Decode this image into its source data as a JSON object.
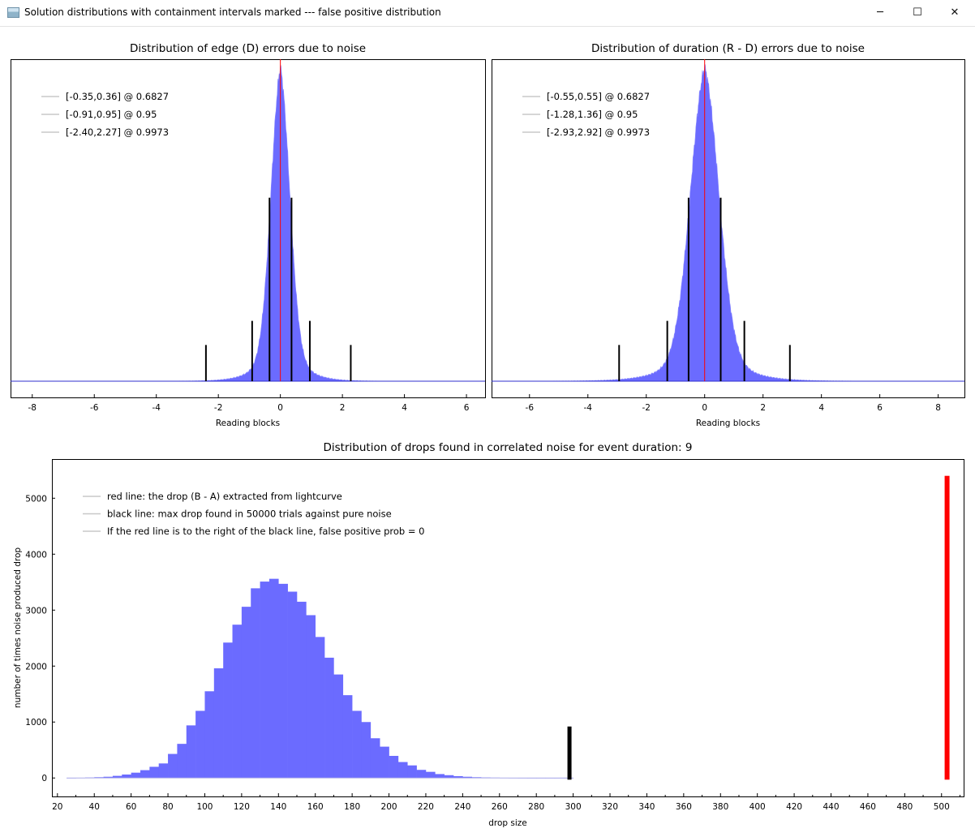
{
  "window": {
    "title": "Solution distributions with containment intervals marked --- false positive distribution",
    "min_glyph": "─",
    "max_glyph": "☐",
    "close_glyph": "✕",
    "app_icon": "window-icon"
  },
  "colors": {
    "hist_fill": "#6b6bff",
    "center_line": "#ff0000",
    "interval_line": "#000000",
    "baseline": "#2f2fcf"
  },
  "chart_data": [
    {
      "type": "bar",
      "title": "Distribution of edge (D) errors due to noise",
      "xlabel": "Reading blocks",
      "ylabel": "",
      "xlim": [
        -8.7,
        6.6
      ],
      "xticks": [
        -8,
        -6,
        -4,
        -2,
        0,
        2,
        4,
        6
      ],
      "distribution": {
        "center": 0.0,
        "sigma": 0.31,
        "tail": 0.5,
        "peak_frac": 0.93
      },
      "center_line": 0.0,
      "interval_bars": [
        {
          "x": -0.35,
          "height_frac": 0.76
        },
        {
          "x": 0.36,
          "height_frac": 0.76
        },
        {
          "x": -0.91,
          "height_frac": 0.25
        },
        {
          "x": 0.95,
          "height_frac": 0.25
        },
        {
          "x": -2.4,
          "height_frac": 0.15
        },
        {
          "x": 2.27,
          "height_frac": 0.15
        }
      ],
      "legend": [
        "[-0.35,0.36] @ 0.6827",
        "[-0.91,0.95] @ 0.95",
        "[-2.40,2.27] @ 0.9973"
      ],
      "legend_position": "top-left",
      "grid": false
    },
    {
      "type": "bar",
      "title": "Distribution of duration (R - D) errors due to noise",
      "xlabel": "Reading blocks",
      "ylabel": "",
      "xlim": [
        -7.3,
        8.9
      ],
      "xticks": [
        -6,
        -4,
        -2,
        0,
        2,
        4,
        6,
        8
      ],
      "distribution": {
        "center": 0.0,
        "sigma": 0.5,
        "tail": 0.8,
        "peak_frac": 0.93
      },
      "center_line": 0.0,
      "interval_bars": [
        {
          "x": -0.55,
          "height_frac": 0.76
        },
        {
          "x": 0.55,
          "height_frac": 0.76
        },
        {
          "x": -1.28,
          "height_frac": 0.25
        },
        {
          "x": 1.36,
          "height_frac": 0.25
        },
        {
          "x": -2.93,
          "height_frac": 0.15
        },
        {
          "x": 2.92,
          "height_frac": 0.15
        }
      ],
      "legend": [
        "[-0.55,0.55] @ 0.6827",
        "[-1.28,1.36] @ 0.95",
        "[-2.93,2.92] @ 0.9973"
      ],
      "legend_position": "top-left",
      "grid": false
    },
    {
      "type": "bar",
      "title": "Distribution of drops found in correlated noise for event duration: 9",
      "xlabel": "drop size",
      "ylabel": "number of times noise produced drop",
      "xlim": [
        17,
        512
      ],
      "ylim": [
        -330,
        5700
      ],
      "xticks": [
        20,
        40,
        60,
        80,
        100,
        120,
        140,
        160,
        180,
        200,
        220,
        240,
        260,
        280,
        300,
        320,
        340,
        360,
        380,
        400,
        420,
        440,
        460,
        480,
        500
      ],
      "yticks": [
        0,
        1000,
        2000,
        3000,
        4000,
        5000
      ],
      "bin_width": 5,
      "bins_start": [
        25,
        30,
        35,
        40,
        45,
        50,
        55,
        60,
        65,
        70,
        75,
        80,
        85,
        90,
        95,
        100,
        105,
        110,
        115,
        120,
        125,
        130,
        135,
        140,
        145,
        150,
        155,
        160,
        165,
        170,
        175,
        180,
        185,
        190,
        195,
        200,
        205,
        210,
        215,
        220,
        225,
        230,
        235,
        240,
        245,
        250,
        255,
        260,
        265,
        270,
        275,
        280,
        285,
        290,
        295
      ],
      "counts": [
        2,
        4,
        8,
        14,
        22,
        38,
        62,
        95,
        140,
        200,
        260,
        430,
        610,
        940,
        1200,
        1550,
        1960,
        2420,
        2740,
        3060,
        3390,
        3510,
        3560,
        3470,
        3330,
        3150,
        2910,
        2520,
        2150,
        1850,
        1480,
        1200,
        1000,
        710,
        560,
        395,
        285,
        225,
        145,
        110,
        70,
        50,
        33,
        22,
        14,
        9,
        6,
        4,
        3,
        2,
        1,
        1,
        1,
        1,
        1
      ],
      "black_line": {
        "x": 298,
        "y0": -30,
        "y1": 920
      },
      "red_line": {
        "x": 503,
        "y0": -30,
        "y1": 5400
      },
      "legend": [
        "red line: the drop (B - A) extracted from lightcurve",
        "black line: max drop found in 50000 trials against pure noise",
        "If the red line is to the right of the black line, false positive prob = 0"
      ],
      "legend_position": "top-left",
      "grid": false
    }
  ]
}
